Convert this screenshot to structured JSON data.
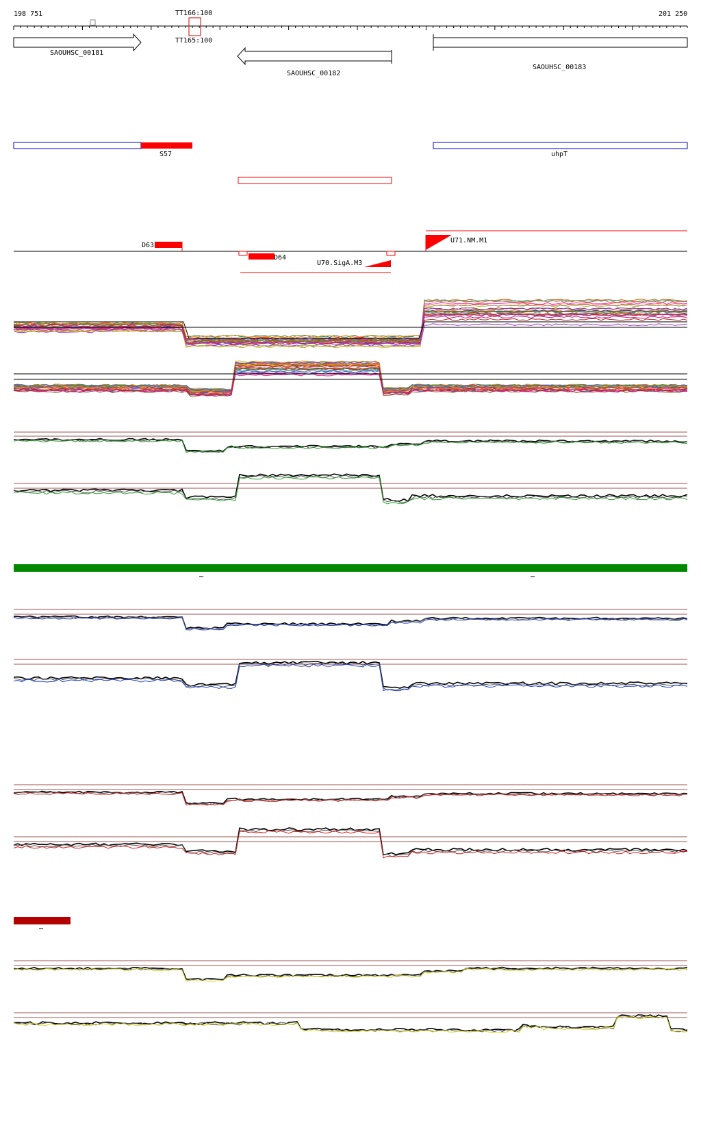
{
  "ruler": {
    "start_label": "198 751",
    "end_label": "201 250",
    "marker_label": "TT166:100",
    "marker_sublabel": "TT165:100"
  },
  "genes": [
    {
      "name": "SAOUHSC_00181",
      "strand": "+"
    },
    {
      "name": "SAOUHSC_00182",
      "strand": "-"
    },
    {
      "name": "SAOUHSC_00183",
      "strand": "+"
    }
  ],
  "features": {
    "s57_label": "S57",
    "uhpt_label": "uhpT"
  },
  "segments": {
    "d63_label": "D63",
    "d64_label": "D64",
    "u70_label": "U70.SigA.M3",
    "u71_label": "U71.NM.M1"
  },
  "colors": {
    "feature_red": "#ff0000",
    "feature_blue": "#0000cc",
    "green_bar": "#008800",
    "dark_red_bar": "#b30000",
    "guide_line": "#a05050",
    "blue_series": "#1f3fcc",
    "red_series": "#d41a1a",
    "yellow_series": "#d8d820",
    "green_series": "#2a9a2a"
  }
}
